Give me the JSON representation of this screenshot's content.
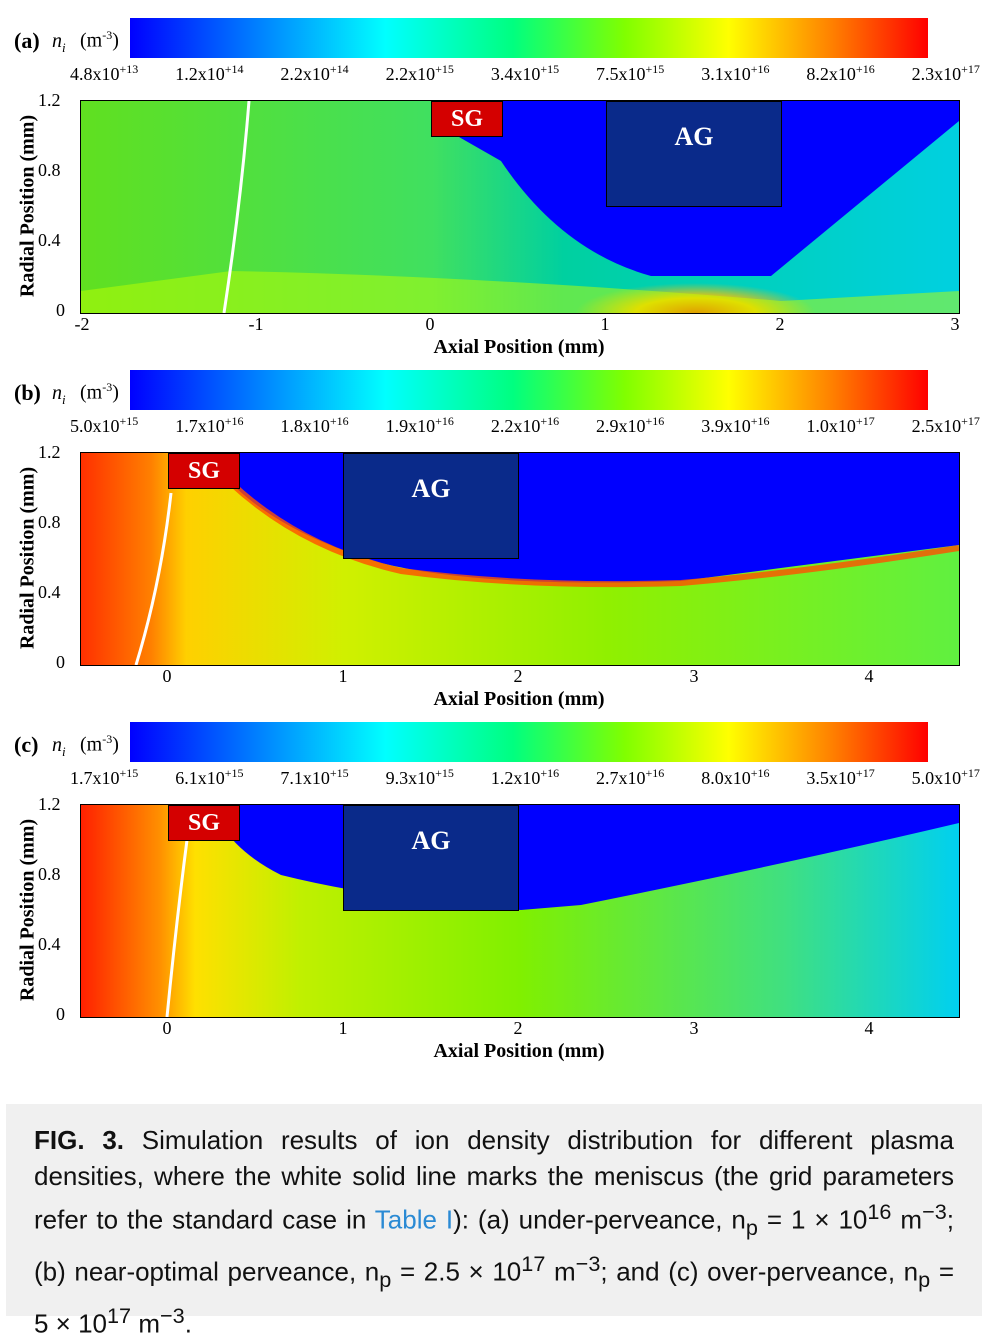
{
  "panels": [
    {
      "label": "(a)",
      "var": "n",
      "var_sub": "i",
      "unit": "(m",
      "unit_sup": "-3",
      "unit_close": ")",
      "ticks": [
        "4.8x10+13",
        "1.2x10+14",
        "2.2x10+14",
        "2.2x10+15",
        "3.4x10+15",
        "7.5x10+15",
        "3.1x10+16",
        "8.2x10+16",
        "2.3x10+17"
      ],
      "ylabel": "Radial Position (mm)",
      "xlabel": "Axial Position (mm)",
      "yticks": [
        "1.2",
        "0.8",
        "0.4",
        "0"
      ],
      "xticks": [
        "-2",
        "-1",
        "0",
        "1",
        "2",
        "3"
      ],
      "sg": "SG",
      "ag": "AG"
    },
    {
      "label": "(b)",
      "var": "n",
      "var_sub": "i",
      "unit": "(m",
      "unit_sup": "-3",
      "unit_close": ")",
      "ticks": [
        "5.0x10+15",
        "1.7x10+16",
        "1.8x10+16",
        "1.9x10+16",
        "2.2x10+16",
        "2.9x10+16",
        "3.9x10+16",
        "1.0x10+17",
        "2.5x10+17"
      ],
      "ylabel": "Radial Position (mm)",
      "xlabel": "Axial Position (mm)",
      "yticks": [
        "1.2",
        "0.8",
        "0.4",
        "0"
      ],
      "xticks": [
        "0",
        "1",
        "2",
        "3",
        "4"
      ],
      "sg": "SG",
      "ag": "AG"
    },
    {
      "label": "(c)",
      "var": "n",
      "var_sub": "i",
      "unit": "(m",
      "unit_sup": "-3",
      "unit_close": ")",
      "ticks": [
        "1.7x10+15",
        "6.1x10+15",
        "7.1x10+15",
        "9.3x10+15",
        "1.2x10+16",
        "2.7x10+16",
        "8.0x10+16",
        "3.5x10+17",
        "5.0x10+17"
      ],
      "ylabel": "Radial Position (mm)",
      "xlabel": "Axial Position (mm)",
      "yticks": [
        "1.2",
        "0.8",
        "0.4",
        "0"
      ],
      "xticks": [
        "0",
        "1",
        "2",
        "3",
        "4"
      ],
      "sg": "SG",
      "ag": "AG"
    }
  ],
  "caption": {
    "fig": "FIG. 3.",
    "text1": " Simulation results of ion density distribution for different plasma densities, where the white solid line marks the meniscus (the grid parameters refer to the standard case in ",
    "link": "Table I",
    "text2": "): (a) under-perveance, n",
    "p1": "p",
    "eq1": " = 1 × 10",
    "e1": "16",
    "u1": " m",
    "m1": "−3",
    "text3": "; (b) near-optimal perveance, n",
    "p2": "p",
    "eq2": " = 2.5 × 10",
    "e2": "17",
    "u2": " m",
    "m2": "−3",
    "text4": "; and (c) over-perveance, n",
    "p3": "p",
    "eq3": " = 5 × 10",
    "e3": "17",
    "u3": " m",
    "m3": "−3",
    "text5": "."
  },
  "chart_data": [
    {
      "type": "heatmap",
      "title": "(a) ni (m-3)",
      "colorbar_ticks": [
        "4.8x10^13",
        "1.2x10^14",
        "2.2x10^14",
        "2.2x10^15",
        "3.4x10^15",
        "7.5x10^15",
        "3.1x10^16",
        "8.2x10^16",
        "2.3x10^17"
      ],
      "xlabel": "Axial Position (mm)",
      "ylabel": "Radial Position (mm)",
      "xlim": [
        -2,
        3
      ],
      "ylim": [
        0,
        1.2
      ],
      "meniscus_x_mm": [
        -1.1,
        -1.2
      ]
    },
    {
      "type": "heatmap",
      "title": "(b) ni (m-3)",
      "colorbar_ticks": [
        "5.0x10^15",
        "1.7x10^16",
        "1.8x10^16",
        "1.9x10^16",
        "2.2x10^16",
        "2.9x10^16",
        "3.9x10^16",
        "1.0x10^17",
        "2.5x10^17"
      ],
      "xlabel": "Axial Position (mm)",
      "ylabel": "Radial Position (mm)",
      "xlim": [
        -0.5,
        4.5
      ],
      "ylim": [
        0,
        1.2
      ],
      "meniscus_x_mm": [
        0.05,
        -0.18
      ]
    },
    {
      "type": "heatmap",
      "title": "(c) ni (m-3)",
      "colorbar_ticks": [
        "1.7x10^15",
        "6.1x10^15",
        "7.1x10^15",
        "9.3x10^15",
        "1.2x10^16",
        "2.7x10^16",
        "8.0x10^16",
        "3.5x10^17",
        "5.0x10^17"
      ],
      "xlabel": "Axial Position (mm)",
      "ylabel": "Radial Position (mm)",
      "xlim": [
        -0.5,
        4.5
      ],
      "ylim": [
        0,
        1.2
      ],
      "meniscus_x_mm": [
        0.12,
        0.0
      ]
    }
  ]
}
